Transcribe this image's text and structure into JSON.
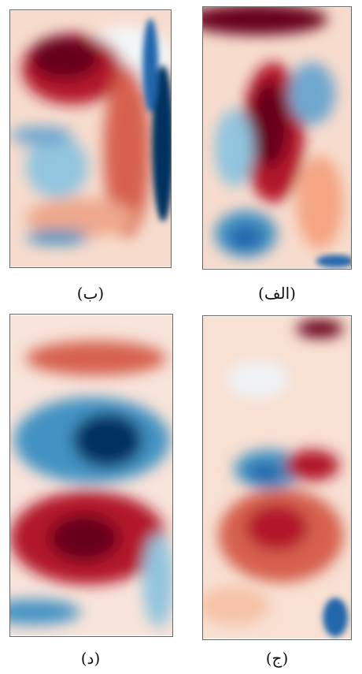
{
  "panels": [
    {
      "label": "(الف)"
    },
    {
      "label": "(ب)"
    },
    {
      "label": "(ج)"
    },
    {
      "label": "(د)"
    }
  ]
}
